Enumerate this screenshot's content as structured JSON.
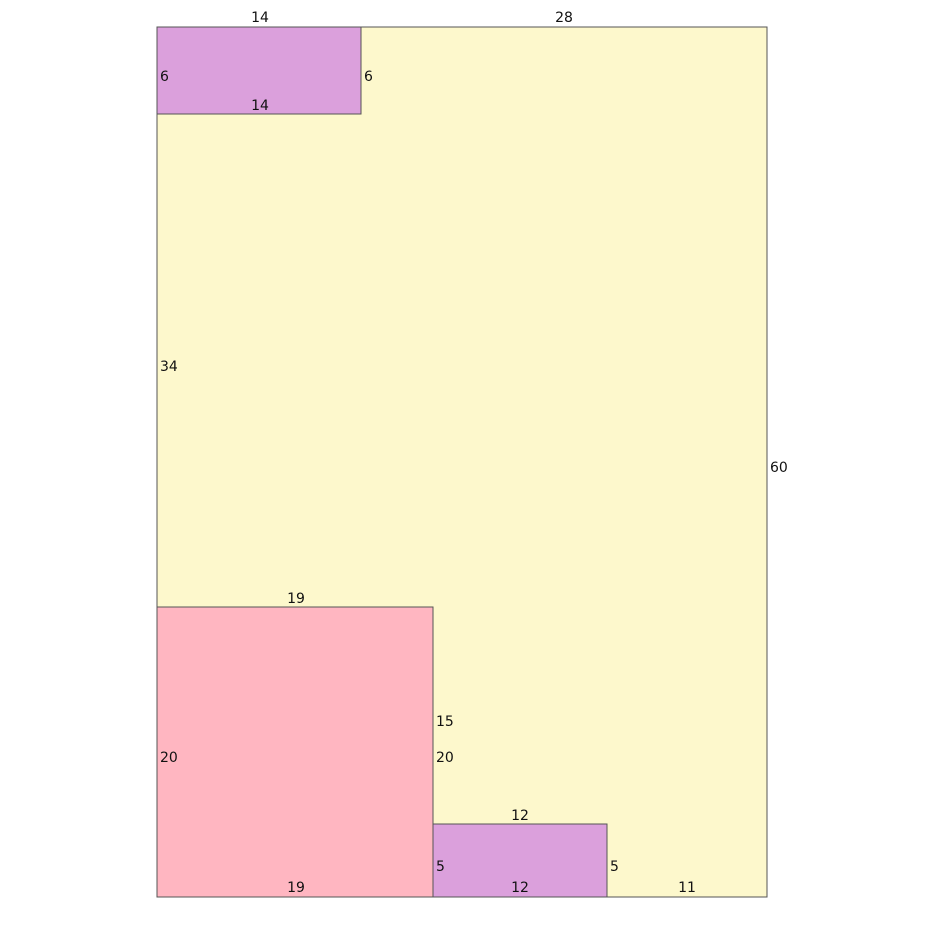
{
  "regions": {
    "outer": {
      "color": "#fdf8cc",
      "labels": {
        "top_left_segment": "14",
        "top_right_segment": "28",
        "right_side": "60",
        "left_middle": "34",
        "bottom_right_segment": "11"
      }
    },
    "top_purple": {
      "color": "#dba0dc",
      "labels": {
        "left": "6",
        "right": "6",
        "bottom": "14"
      }
    },
    "pink": {
      "color": "#ffb6c1",
      "labels": {
        "top": "19",
        "left": "20",
        "right": "20",
        "right_upper": "15",
        "bottom": "19"
      }
    },
    "bottom_purple": {
      "color": "#dba0dc",
      "labels": {
        "top": "12",
        "left": "5",
        "right": "5",
        "bottom": "12"
      }
    }
  }
}
